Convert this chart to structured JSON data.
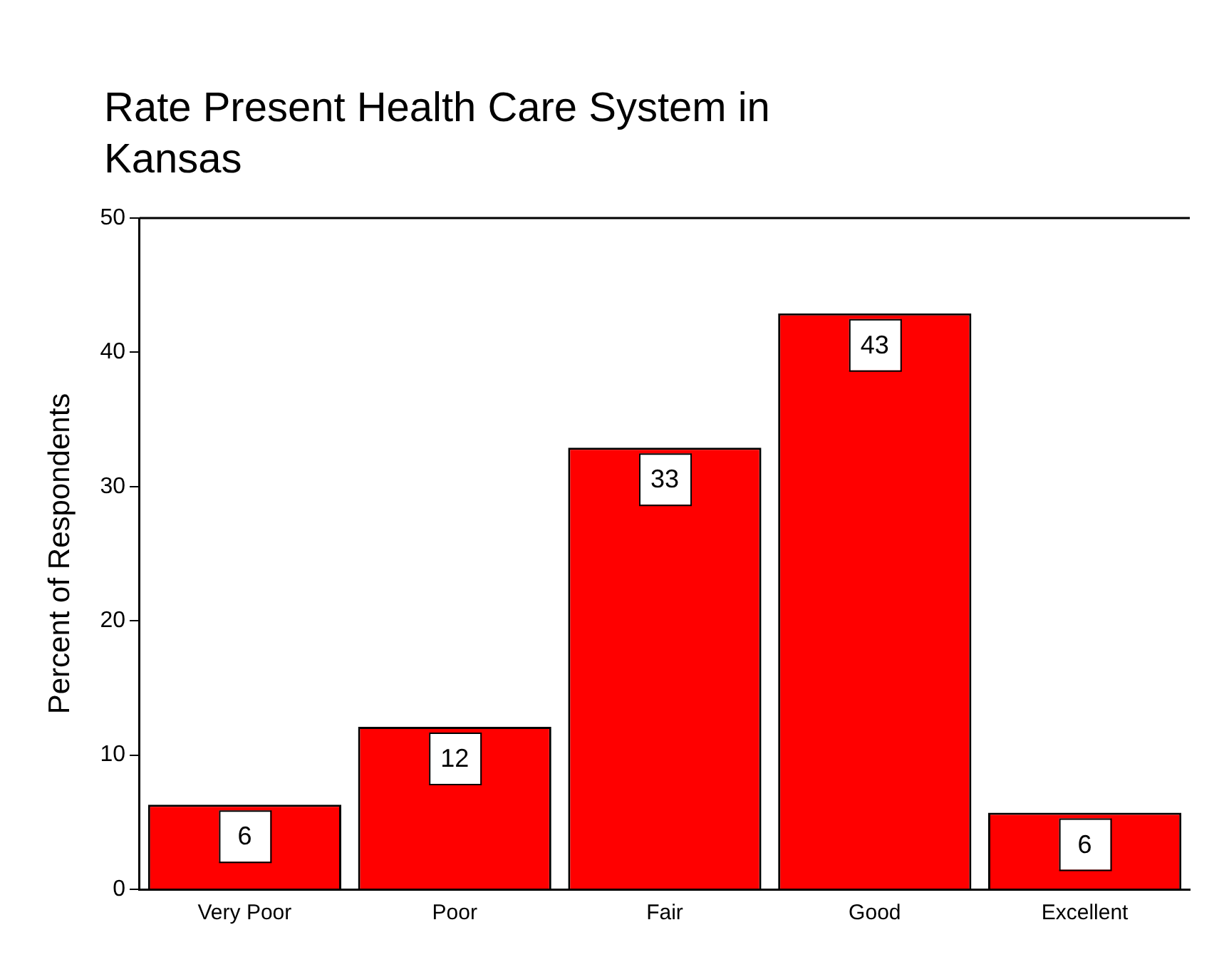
{
  "chart_data": {
    "type": "bar",
    "title": "Rate Present Health Care System in Kansas",
    "ylabel": "Percent of Respondents",
    "categories": [
      "Very Poor",
      "Poor",
      "Fair",
      "Good",
      "Excellent"
    ],
    "values": [
      6.3,
      12.1,
      32.9,
      42.9,
      5.7
    ],
    "value_labels": [
      "6",
      "12",
      "33",
      "43",
      "6"
    ],
    "color": "#ff0000",
    "ylim": [
      0,
      50
    ],
    "yticks": [
      0,
      10,
      20,
      30,
      40,
      50
    ],
    "grid": false,
    "legend": false
  }
}
